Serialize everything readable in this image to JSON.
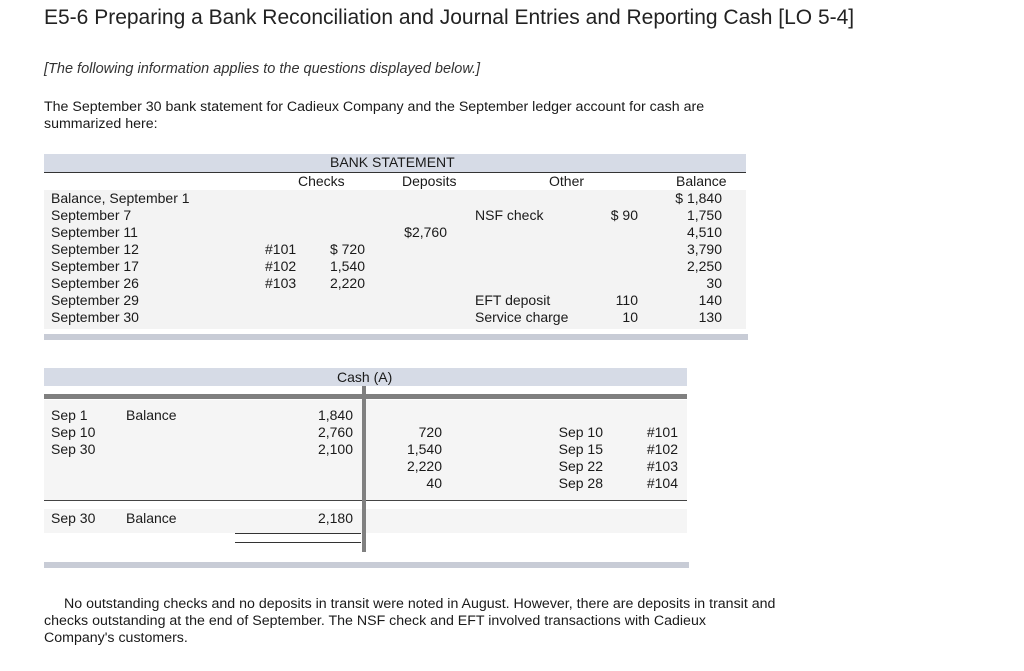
{
  "title": "E5-6 Preparing a Bank Reconciliation and Journal Entries and Reporting Cash [LO 5-4]",
  "intro": "[The following information applies to the questions displayed below.]",
  "paragraph": "The September 30 bank statement for Cadieux Company and the September ledger account for cash are summarized here:",
  "bank_statement": {
    "title": "BANK STATEMENT",
    "headers": {
      "checks": "Checks",
      "deposits": "Deposits",
      "other": "Other",
      "balance": "Balance"
    },
    "rows": [
      {
        "label": "Balance, September 1",
        "check_no": "",
        "check_amt": "",
        "deposit": "",
        "other_desc": "",
        "other_amt": "",
        "balance": "$ 1,840"
      },
      {
        "label": "September 7",
        "check_no": "",
        "check_amt": "",
        "deposit": "",
        "other_desc": "NSF check",
        "other_amt": "$ 90",
        "balance": "1,750"
      },
      {
        "label": "September 11",
        "check_no": "",
        "check_amt": "",
        "deposit": "$2,760",
        "other_desc": "",
        "other_amt": "",
        "balance": "4,510"
      },
      {
        "label": "September 12",
        "check_no": "#101",
        "check_amt": "$  720",
        "deposit": "",
        "other_desc": "",
        "other_amt": "",
        "balance": "3,790"
      },
      {
        "label": "September 17",
        "check_no": "#102",
        "check_amt": "1,540",
        "deposit": "",
        "other_desc": "",
        "other_amt": "",
        "balance": "2,250"
      },
      {
        "label": "September 26",
        "check_no": "#103",
        "check_amt": "2,220",
        "deposit": "",
        "other_desc": "",
        "other_amt": "",
        "balance": "30"
      },
      {
        "label": "September 29",
        "check_no": "",
        "check_amt": "",
        "deposit": "",
        "other_desc": "EFT deposit",
        "other_amt": "110",
        "balance": "140"
      },
      {
        "label": "September 30",
        "check_no": "",
        "check_amt": "",
        "deposit": "",
        "other_desc": "Service charge",
        "other_amt": "10",
        "balance": "130"
      }
    ]
  },
  "cash_account": {
    "title": "Cash (A)",
    "debits": [
      {
        "date": "Sep 1",
        "desc": "Balance",
        "amount": "1,840"
      },
      {
        "date": "Sep 10",
        "desc": "",
        "amount": "2,760"
      },
      {
        "date": "Sep 30",
        "desc": "",
        "amount": "2,100"
      }
    ],
    "credits": [
      {
        "amount": "720",
        "date": "Sep 10",
        "ref": "#101"
      },
      {
        "amount": "1,540",
        "date": "Sep 15",
        "ref": "#102"
      },
      {
        "amount": "2,220",
        "date": "Sep 22",
        "ref": "#103"
      },
      {
        "amount": "40",
        "date": "Sep 28",
        "ref": "#104"
      }
    ],
    "ending": {
      "date": "Sep 30",
      "desc": "Balance",
      "amount": "2,180"
    }
  },
  "footer": "No outstanding checks and no deposits in transit were noted in August. However, there are deposits in transit and checks outstanding at the end of September. The NSF check and EFT involved transactions with Cadieux Company's customers."
}
